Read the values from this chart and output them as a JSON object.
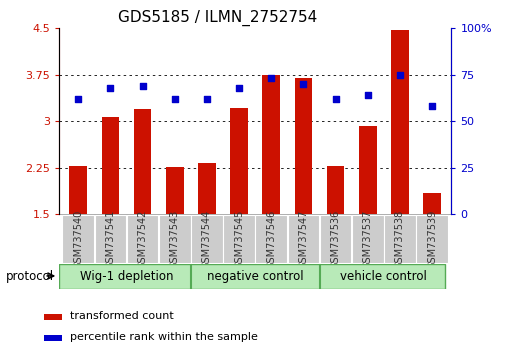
{
  "title": "GDS5185 / ILMN_2752754",
  "samples": [
    "GSM737540",
    "GSM737541",
    "GSM737542",
    "GSM737543",
    "GSM737544",
    "GSM737545",
    "GSM737546",
    "GSM737547",
    "GSM737536",
    "GSM737537",
    "GSM737538",
    "GSM737539"
  ],
  "bar_values": [
    2.27,
    3.07,
    3.2,
    2.26,
    2.32,
    3.22,
    3.74,
    3.7,
    2.27,
    2.93,
    4.47,
    1.84
  ],
  "dot_values": [
    62,
    68,
    69,
    62,
    62,
    68,
    73,
    70,
    62,
    64,
    75,
    58
  ],
  "ylim_left": [
    1.5,
    4.5
  ],
  "ylim_right": [
    0,
    100
  ],
  "yticks_left": [
    1.5,
    2.25,
    3.0,
    3.75,
    4.5
  ],
  "ytick_labels_left": [
    "1.5",
    "2.25",
    "3",
    "3.75",
    "4.5"
  ],
  "yticks_right": [
    0,
    25,
    50,
    75,
    100
  ],
  "ytick_labels_right": [
    "0",
    "25",
    "50",
    "75",
    "100%"
  ],
  "groups": [
    {
      "label": "Wig-1 depletion",
      "start": 0,
      "end": 3
    },
    {
      "label": "negative control",
      "start": 4,
      "end": 7
    },
    {
      "label": "vehicle control",
      "start": 8,
      "end": 11
    }
  ],
  "group_color_light": "#b8eab8",
  "group_color_dark": "#44cc44",
  "group_separator_color": "#55aa55",
  "bar_color": "#cc1100",
  "dot_color": "#0000cc",
  "left_axis_color": "#cc1100",
  "right_axis_color": "#0000cc",
  "xtick_bg_color": "#cccccc",
  "xtick_text_color": "#333333",
  "bar_width": 0.55,
  "protocol_label": "protocol",
  "legend_bar_label": "transformed count",
  "legend_dot_label": "percentile rank within the sample",
  "title_fontsize": 11,
  "tick_fontsize": 8,
  "xtick_fontsize": 7
}
